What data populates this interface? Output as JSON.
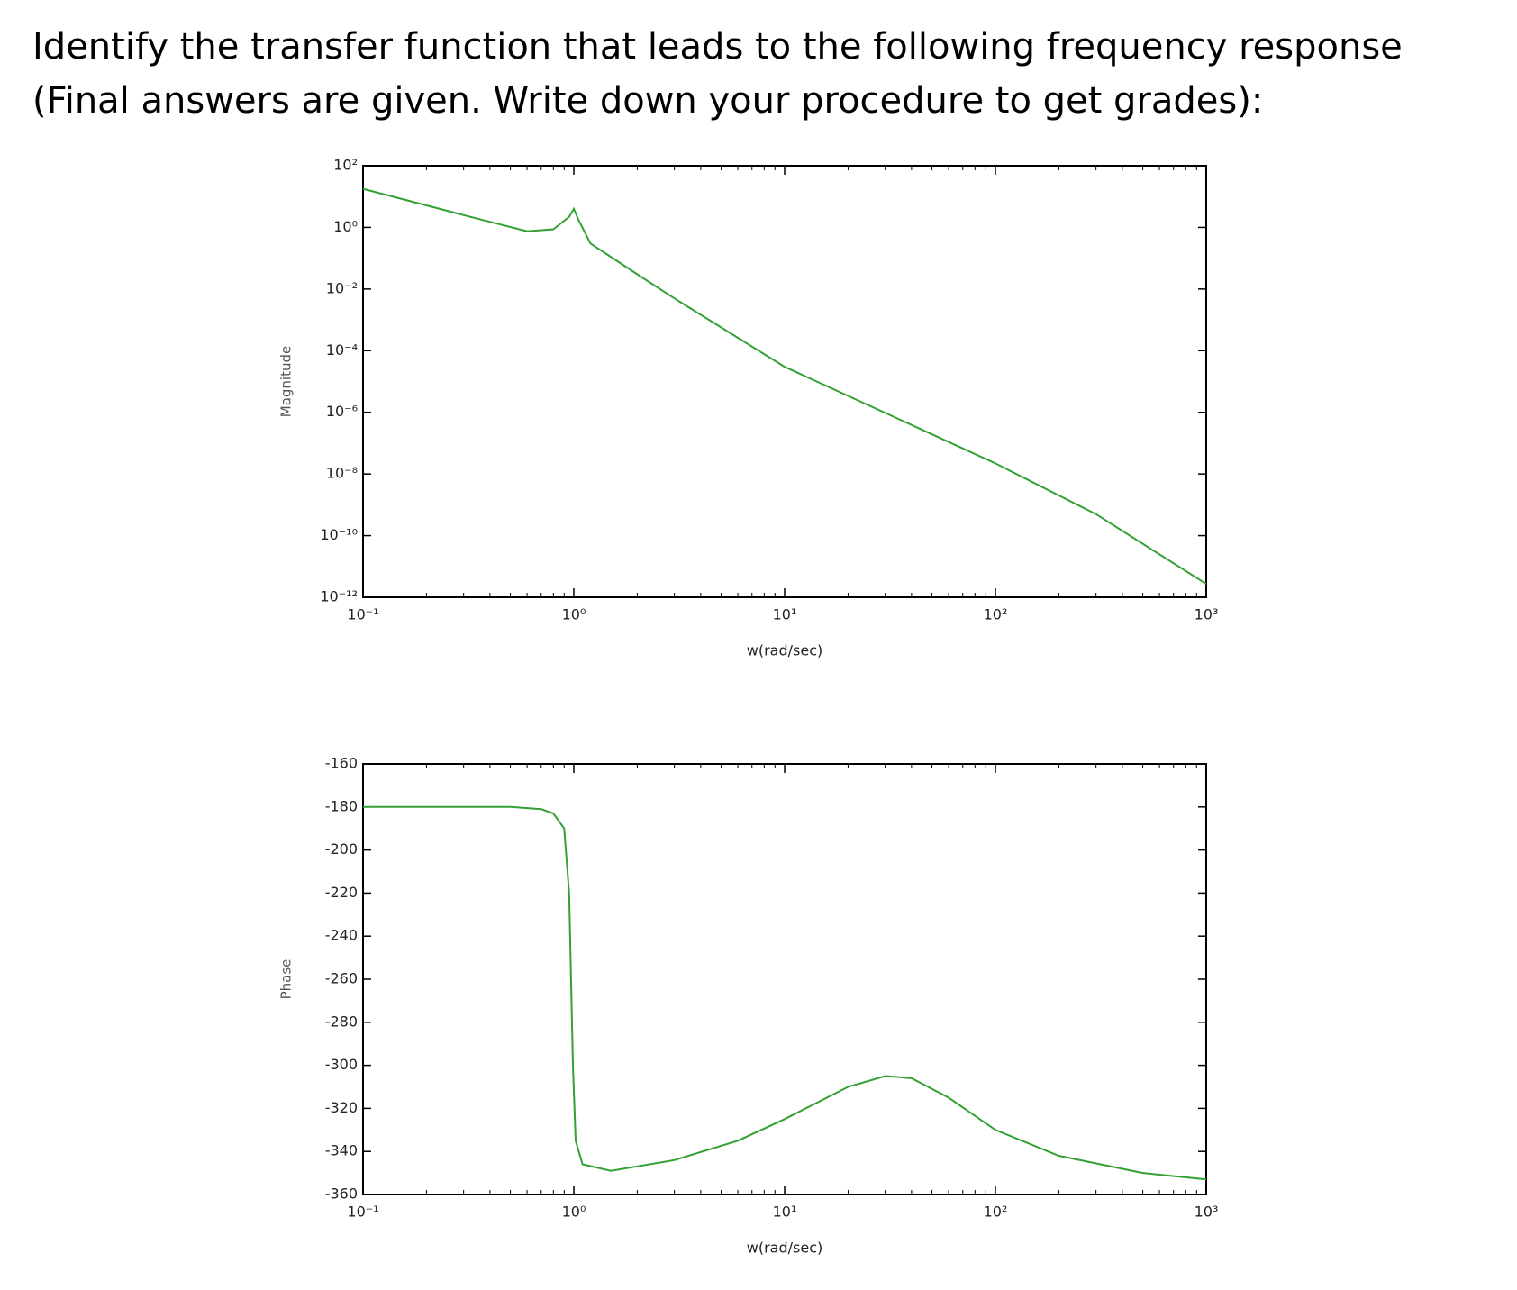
{
  "question": "Identify the transfer function that leads to the following frequency response (Final answers are given. Write down your procedure to get grades):",
  "chart_data": [
    {
      "type": "line",
      "ylabel": "Magnitude",
      "xlabel": "w(rad/sec)",
      "xscale": "log",
      "yscale": "log",
      "color": "#33a033",
      "x": [
        0.1,
        0.3,
        0.6,
        0.8,
        0.95,
        1.0,
        1.05,
        1.2,
        2,
        3,
        10,
        100,
        300,
        1000
      ],
      "values": [
        17.8,
        2.5,
        0.75,
        0.87,
        2.2,
        4,
        1.8,
        0.3,
        0.03,
        0.005,
        3e-05,
        2.2e-08,
        5e-10,
        2.7e-12
      ],
      "xlim": [
        0.1,
        1000
      ],
      "xticks": [
        {
          "value": 0.1,
          "label": "10⁻¹"
        },
        {
          "value": 1,
          "label": "10⁰"
        },
        {
          "value": 10,
          "label": "10¹"
        },
        {
          "value": 100,
          "label": "10²"
        },
        {
          "value": 1000,
          "label": "10³"
        }
      ],
      "ylim": [
        1e-12,
        100
      ],
      "yticks": [
        {
          "value": 100,
          "label": "10²"
        },
        {
          "value": 1,
          "label": "10⁰"
        },
        {
          "value": 0.01,
          "label": "10⁻²"
        },
        {
          "value": 0.0001,
          "label": "10⁻⁴"
        },
        {
          "value": 1e-06,
          "label": "10⁻⁶"
        },
        {
          "value": 1e-08,
          "label": "10⁻⁸"
        },
        {
          "value": 1e-10,
          "label": "10⁻¹⁰"
        },
        {
          "value": 1e-12,
          "label": "10⁻¹²"
        }
      ]
    },
    {
      "type": "line",
      "ylabel": "Phase",
      "xlabel": "w(rad/sec)",
      "xscale": "log",
      "color": "#33a033",
      "x": [
        0.1,
        0.5,
        0.7,
        0.8,
        0.9,
        0.95,
        0.97,
        0.99,
        1.02,
        1.1,
        1.5,
        3,
        6,
        10,
        20,
        30,
        40,
        60,
        100,
        200,
        500,
        1000
      ],
      "values": [
        -180,
        -180,
        -181,
        -183,
        -190,
        -220,
        -260,
        -300,
        -335,
        -346,
        -349,
        -344,
        -335,
        -325,
        -310,
        -305,
        -306,
        -315,
        -330,
        -342,
        -350,
        -353
      ],
      "xlim": [
        0.1,
        1000
      ],
      "xticks": [
        {
          "value": 0.1,
          "label": "10⁻¹"
        },
        {
          "value": 1,
          "label": "10⁰"
        },
        {
          "value": 10,
          "label": "10¹"
        },
        {
          "value": 100,
          "label": "10²"
        },
        {
          "value": 1000,
          "label": "10³"
        }
      ],
      "ylim": [
        -360,
        -160
      ],
      "yticks": [
        -160,
        -180,
        -200,
        -220,
        -240,
        -260,
        -280,
        -300,
        -320,
        -340,
        -360
      ]
    }
  ]
}
